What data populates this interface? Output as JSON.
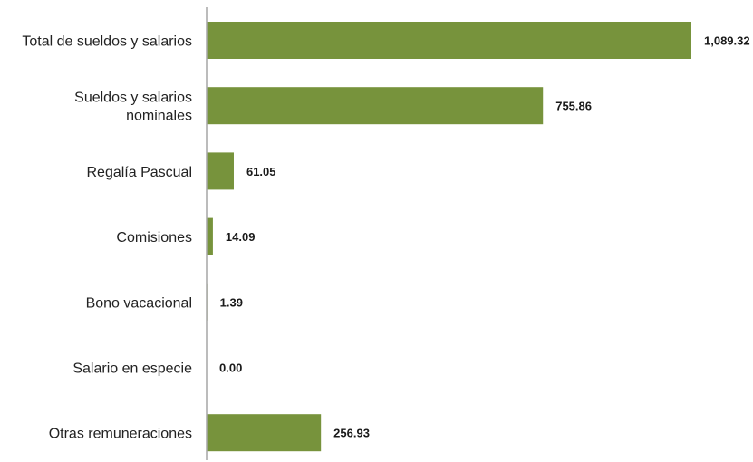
{
  "chart_data": {
    "type": "bar",
    "orientation": "horizontal",
    "categories": [
      [
        "Total de sueldos y salarios"
      ],
      [
        "Sueldos y salarios",
        "nominales"
      ],
      [
        "Regalía Pascual"
      ],
      [
        "Comisiones"
      ],
      [
        "Bono vacacional"
      ],
      [
        "Salario en especie"
      ],
      [
        "Otras remuneraciones"
      ]
    ],
    "values": [
      1089.32,
      755.86,
      61.05,
      14.09,
      1.39,
      0.0,
      256.93
    ],
    "value_labels": [
      "1,089.32",
      "755.86",
      "61.05",
      "14.09",
      "1.39",
      "0.00",
      "256.93"
    ],
    "title": "",
    "xlabel": "",
    "ylabel": "",
    "xlim": [
      0,
      1089.32
    ],
    "grid": false,
    "legend": "none",
    "colors": {
      "bar": "#77933c",
      "axis": "#a6a6a6"
    }
  }
}
